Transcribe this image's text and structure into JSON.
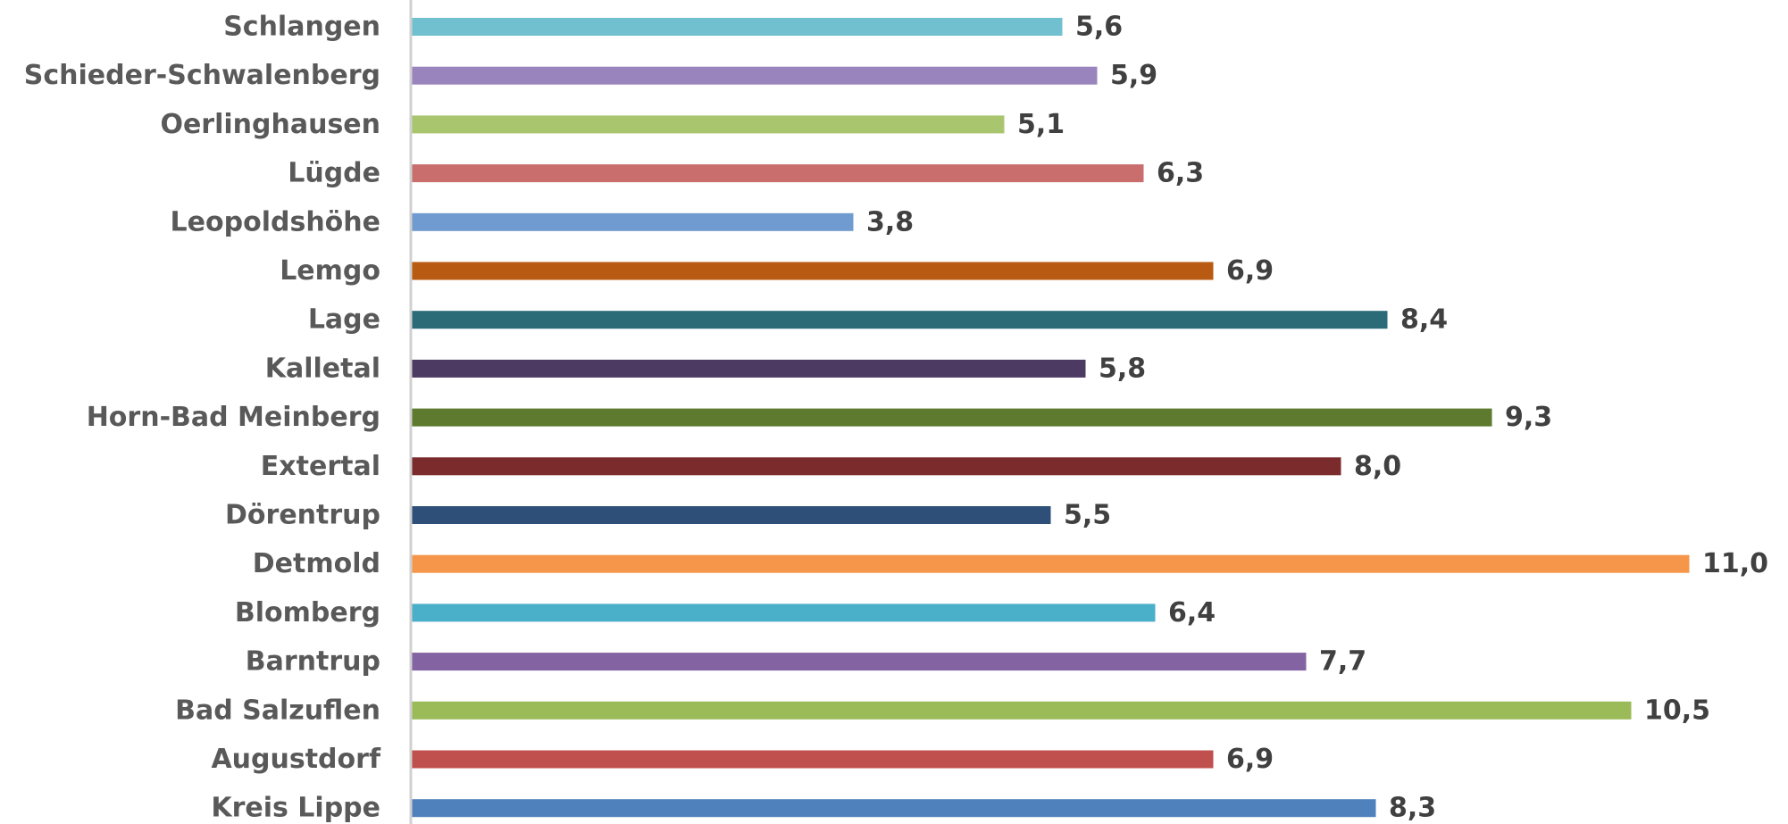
{
  "chart_data": {
    "type": "bar",
    "orientation": "horizontal",
    "categories": [
      "Schlangen",
      "Schieder-Schwalenberg",
      "Oerlinghausen",
      "Lügde",
      "Leopoldshöhe",
      "Lemgo",
      "Lage",
      "Kalletal",
      "Horn-Bad Meinberg",
      "Extertal",
      "Dörentrup",
      "Detmold",
      "Blomberg",
      "Barntrup",
      "Bad Salzuflen",
      "Augustdorf",
      "Kreis Lippe"
    ],
    "values": [
      5.6,
      5.9,
      5.1,
      6.3,
      3.8,
      6.9,
      8.4,
      5.8,
      9.3,
      8.0,
      5.5,
      11.0,
      6.4,
      7.7,
      10.5,
      6.9,
      8.3
    ],
    "value_labels": [
      "5,6",
      "5,9",
      "5,1",
      "6,3",
      "3,8",
      "6,9",
      "8,4",
      "5,8",
      "9,3",
      "8,0",
      "5,5",
      "11,0",
      "6,4",
      "7,7",
      "10,5",
      "6,9",
      "8,3"
    ],
    "colors": [
      "#70c0d0",
      "#9a84bd",
      "#a9c66f",
      "#c96d6d",
      "#6f9bd0",
      "#b85a12",
      "#2b6b78",
      "#4d3a62",
      "#5e7a2e",
      "#7b2b2b",
      "#2d4f78",
      "#f5964a",
      "#4aafc8",
      "#8463a3",
      "#9bbb59",
      "#c0504d",
      "#4f81bd"
    ],
    "title": "",
    "xlabel": "",
    "ylabel": "",
    "xlim": [
      0,
      11.0
    ],
    "grid": false,
    "legend": "none",
    "data_labels": true
  }
}
